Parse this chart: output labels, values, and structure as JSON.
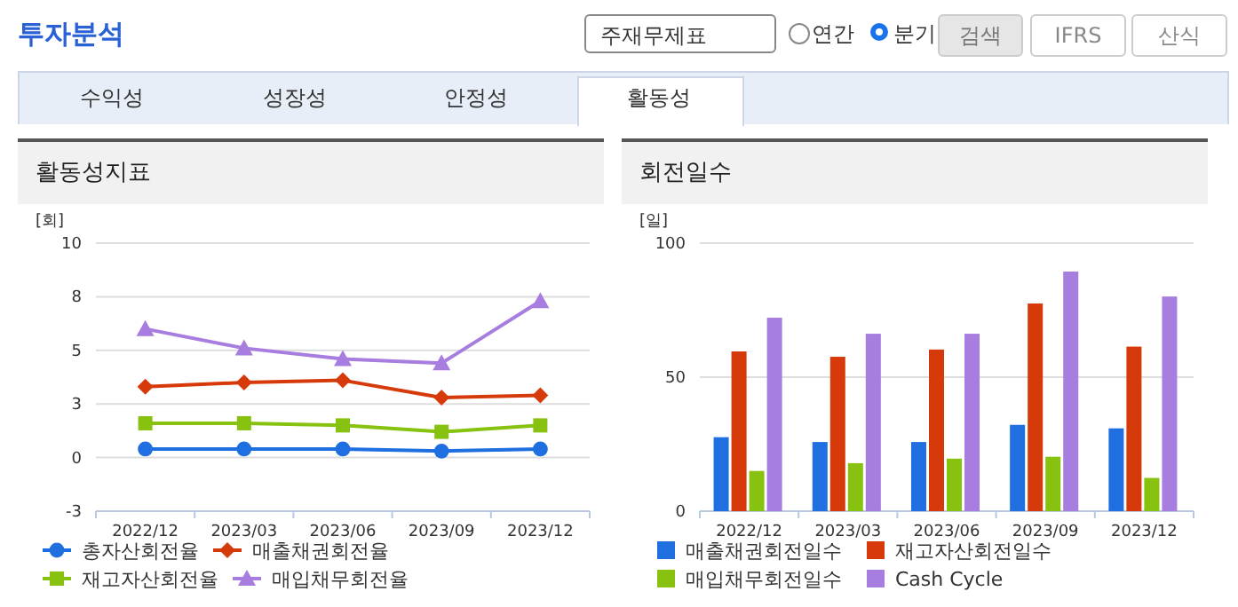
{
  "chart_data": [
    {
      "type": "other",
      "annotations": [
        "투자분석",
        "주재무제표",
        "연간",
        "분기",
        "검색",
        "IFRS",
        "산식",
        "수익성",
        "성장성",
        "안정성",
        "활동성"
      ]
    },
    {
      "type": "line",
      "title": "활동성지표",
      "ylabel": "[회]",
      "categories": [
        "2022/12",
        "2023/03",
        "2023/06",
        "2023/09",
        "2023/12"
      ],
      "ylim": [
        -2.5,
        10
      ],
      "yticks": [
        {
          "value": -2.5,
          "label": "-3"
        },
        0,
        {
          "value": 2.5,
          "label": "3"
        },
        5,
        {
          "value": 7.5,
          "label": "8"
        },
        10
      ],
      "grid": "y",
      "legend": "bottom",
      "series": [
        {
          "name": "총자산회전율",
          "color": "#1f6fe0",
          "marker": "circle",
          "values": [
            0.4,
            0.4,
            0.4,
            0.3,
            0.4
          ]
        },
        {
          "name": "매출채권회전율",
          "color": "#d63a0a",
          "marker": "diamond",
          "values": [
            3.3,
            3.5,
            3.6,
            2.8,
            2.9
          ]
        },
        {
          "name": "재고자산회전율",
          "color": "#86c20f",
          "marker": "square",
          "values": [
            1.6,
            1.6,
            1.5,
            1.2,
            1.5
          ]
        },
        {
          "name": "매입채무회전율",
          "color": "#a77de0",
          "marker": "triangle",
          "values": [
            6.0,
            5.1,
            4.6,
            4.4,
            7.3
          ]
        }
      ]
    },
    {
      "type": "bar",
      "title": "회전일수",
      "ylabel": "[일]",
      "categories": [
        "2022/12",
        "2023/03",
        "2023/06",
        "2023/09",
        "2023/12"
      ],
      "ylim": [
        0,
        100
      ],
      "yticks": [
        0,
        50,
        100
      ],
      "grid": "y",
      "legend": "bottom",
      "series": [
        {
          "name": "매출채권회전일수",
          "color": "#1f6fe0",
          "values": [
            27.6,
            25.8,
            25.8,
            32.2,
            30.9
          ]
        },
        {
          "name": "재고자산회전일수",
          "color": "#d63a0a",
          "values": [
            59.6,
            57.6,
            60.3,
            77.5,
            61.4
          ]
        },
        {
          "name": "매입채무회전일수",
          "color": "#86c20f",
          "values": [
            15.0,
            17.9,
            19.6,
            20.3,
            12.4
          ]
        },
        {
          "name": "Cash Cycle",
          "color": "#a77de0",
          "values": [
            72.2,
            66.2,
            66.2,
            89.4,
            80.1
          ]
        }
      ]
    }
  ]
}
